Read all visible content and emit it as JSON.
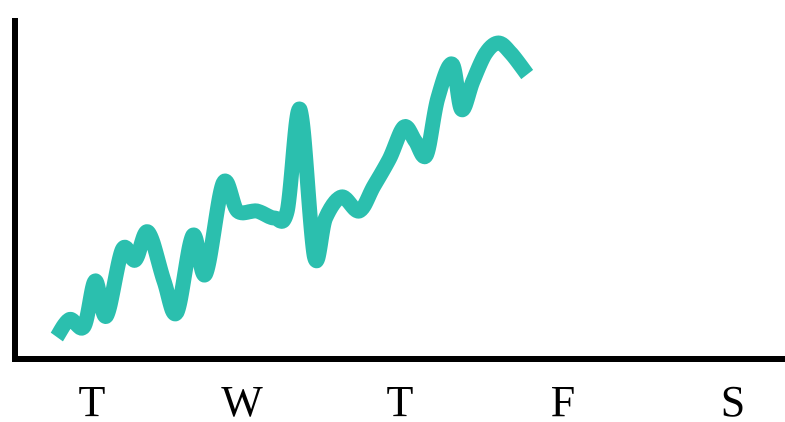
{
  "chart_data": {
    "type": "line",
    "title": "",
    "xlabel": "",
    "ylabel": "",
    "categories": [
      "T",
      "W",
      "T",
      "F",
      "S"
    ],
    "xlim": [
      -0.25,
      4.15
    ],
    "ylim": [
      0,
      10
    ],
    "grid": false,
    "legend": "none",
    "colors": {
      "line": "#2bbfae",
      "axis": "#000000",
      "text": "#000000"
    },
    "series": [
      {
        "points": [
          [
            -0.22,
            1.0
          ],
          [
            -0.14,
            1.5
          ],
          [
            -0.05,
            1.3
          ],
          [
            0.02,
            2.6
          ],
          [
            0.09,
            1.6
          ],
          [
            0.19,
            3.5
          ],
          [
            0.27,
            3.2
          ],
          [
            0.35,
            4.0
          ],
          [
            0.45,
            2.6
          ],
          [
            0.53,
            1.7
          ],
          [
            0.63,
            3.9
          ],
          [
            0.71,
            2.8
          ],
          [
            0.82,
            5.4
          ],
          [
            0.91,
            4.6
          ],
          [
            1.03,
            4.6
          ],
          [
            1.14,
            4.4
          ],
          [
            1.22,
            4.6
          ],
          [
            1.3,
            7.5
          ],
          [
            1.39,
            3.3
          ],
          [
            1.46,
            4.4
          ],
          [
            1.56,
            5.0
          ],
          [
            1.67,
            4.6
          ],
          [
            1.76,
            5.3
          ],
          [
            1.86,
            6.1
          ],
          [
            1.95,
            7.0
          ],
          [
            2.02,
            6.6
          ],
          [
            2.09,
            6.2
          ],
          [
            2.16,
            7.8
          ],
          [
            2.25,
            8.8
          ],
          [
            2.31,
            7.5
          ],
          [
            2.38,
            8.3
          ],
          [
            2.46,
            9.1
          ],
          [
            2.54,
            9.4
          ],
          [
            2.62,
            9.1
          ],
          [
            2.72,
            8.5
          ]
        ]
      }
    ]
  }
}
